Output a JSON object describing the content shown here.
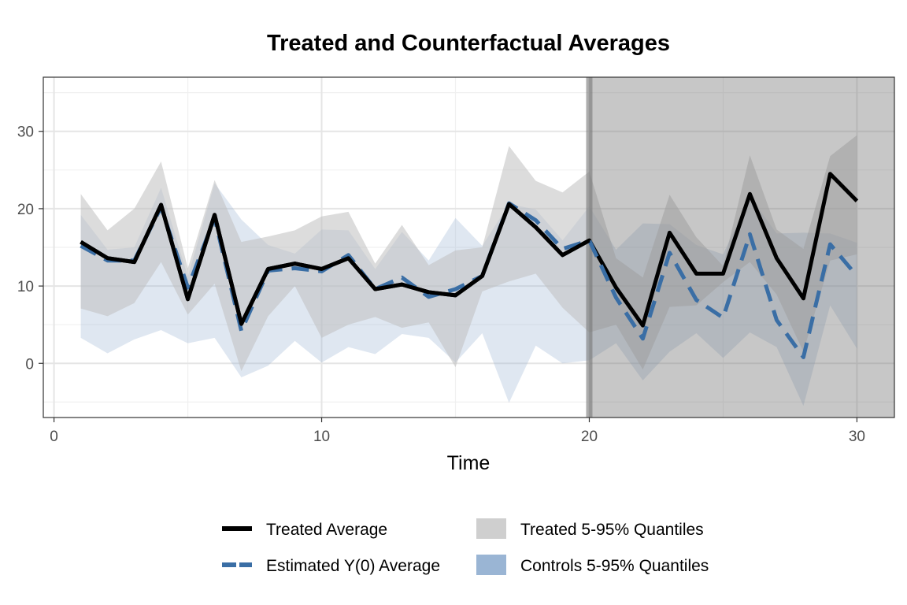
{
  "chart_data": {
    "type": "line",
    "title": "Treated and Counterfactual Averages",
    "xlabel": "Time",
    "ylabel": "",
    "xlim": [
      -0.4,
      31.4
    ],
    "ylim": [
      -7,
      37
    ],
    "x_ticks": [
      0,
      10,
      20,
      30
    ],
    "y_ticks": [
      0,
      10,
      20,
      30
    ],
    "grid": true,
    "treatment_start": 20,
    "legend_position": "bottom",
    "x": [
      1,
      2,
      3,
      4,
      5,
      6,
      7,
      8,
      9,
      10,
      11,
      12,
      13,
      14,
      15,
      16,
      17,
      18,
      19,
      20,
      21,
      22,
      23,
      24,
      25,
      26,
      27,
      28,
      29,
      30
    ],
    "series": [
      {
        "name": "Treated Average",
        "type": "line",
        "color": "#000000",
        "values": [
          15.7,
          13.6,
          13.1,
          20.5,
          8.3,
          19.2,
          5.1,
          12.2,
          12.9,
          12.2,
          13.6,
          9.6,
          10.2,
          9.2,
          8.8,
          11.3,
          20.6,
          17.6,
          14.0,
          15.9,
          9.8,
          4.9,
          16.9,
          11.6,
          11.6,
          21.9,
          13.6,
          8.4,
          24.5,
          21.0
        ]
      },
      {
        "name": "Estimated Y(0) Average",
        "type": "dashed-line",
        "color": "#3A6EA5",
        "values": [
          15.2,
          13.3,
          13.3,
          20.2,
          9.8,
          18.8,
          4.2,
          12.0,
          12.3,
          11.9,
          14.0,
          9.6,
          11.1,
          8.6,
          9.6,
          11.3,
          20.7,
          18.5,
          14.8,
          15.9,
          8.5,
          3.2,
          14.3,
          8.2,
          5.9,
          16.7,
          5.6,
          0.8,
          15.4,
          11.3
        ]
      },
      {
        "name": "Treated 5-95% Quantiles",
        "type": "band",
        "color": "#bfbfbf",
        "lower": [
          7.1,
          6.1,
          7.8,
          13.1,
          6.3,
          10.3,
          -1.0,
          6.1,
          10.0,
          3.3,
          5.0,
          6.0,
          4.6,
          5.3,
          -0.5,
          9.3,
          10.6,
          11.6,
          7.2,
          4.0,
          5.0,
          -0.8,
          7.3,
          7.5,
          10.5,
          13.1,
          8.9,
          1.5,
          13.3,
          14.1
        ],
        "upper": [
          21.9,
          17.2,
          20.0,
          26.1,
          12.3,
          23.7,
          15.7,
          16.4,
          17.2,
          19.0,
          19.6,
          12.9,
          17.9,
          12.7,
          14.6,
          15.0,
          28.1,
          23.6,
          22.1,
          24.8,
          13.6,
          11.1,
          21.8,
          16.3,
          12.6,
          26.9,
          17.3,
          14.8,
          26.8,
          29.5
        ]
      },
      {
        "name": "Controls 5-95% Quantiles",
        "type": "band",
        "color": "#9ab5d4",
        "lower": [
          3.3,
          1.3,
          3.1,
          4.3,
          2.6,
          3.3,
          -1.8,
          -0.3,
          2.9,
          0.1,
          2.1,
          1.2,
          3.8,
          3.3,
          0.1,
          3.9,
          -5.1,
          2.3,
          0.0,
          0.4,
          2.6,
          -2.2,
          1.5,
          3.9,
          0.7,
          4.0,
          2.1,
          -5.5,
          7.5,
          1.9
        ],
        "upper": [
          19.2,
          14.7,
          15.0,
          22.7,
          11.2,
          23.3,
          18.6,
          15.3,
          14.2,
          17.3,
          17.2,
          12.2,
          17.0,
          13.3,
          18.8,
          15.2,
          20.6,
          19.9,
          15.9,
          20.3,
          14.7,
          18.1,
          18.0,
          15.3,
          14.1,
          21.6,
          16.8,
          16.9,
          16.8,
          15.6
        ]
      }
    ]
  }
}
